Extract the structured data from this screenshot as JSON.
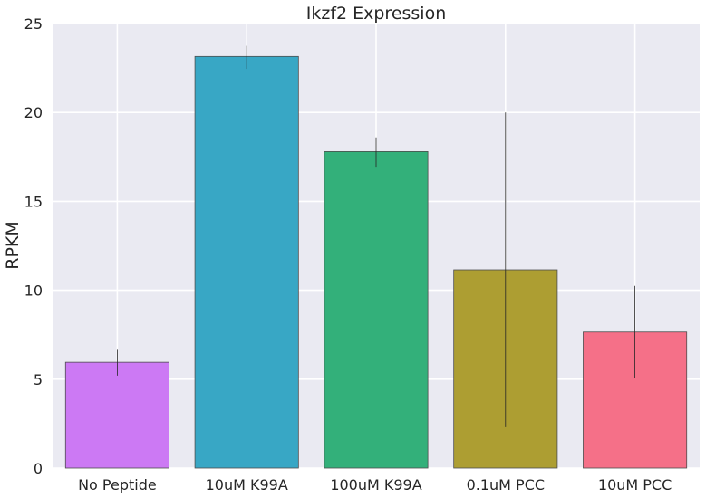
{
  "chart_data": {
    "type": "bar",
    "title": "Ikzf2 Expression",
    "xlabel": "",
    "ylabel": "RPKM",
    "ylim": [
      0,
      25
    ],
    "yticks": [
      "0",
      "5",
      "10",
      "15",
      "20",
      "25"
    ],
    "grid": true,
    "categories": [
      "No Peptide",
      "10uM K99A",
      "100uM K99A",
      "0.1uM PCC",
      "10uM PCC"
    ],
    "values": [
      5.95,
      23.15,
      17.8,
      11.15,
      7.65
    ],
    "error_low": [
      5.2,
      22.45,
      16.95,
      2.3,
      5.05
    ],
    "error_high": [
      6.7,
      23.75,
      18.6,
      20.0,
      10.25
    ],
    "colors": [
      "#cc79f4",
      "#38a7c5",
      "#33b07a",
      "#ad9e32",
      "#f57088"
    ]
  }
}
